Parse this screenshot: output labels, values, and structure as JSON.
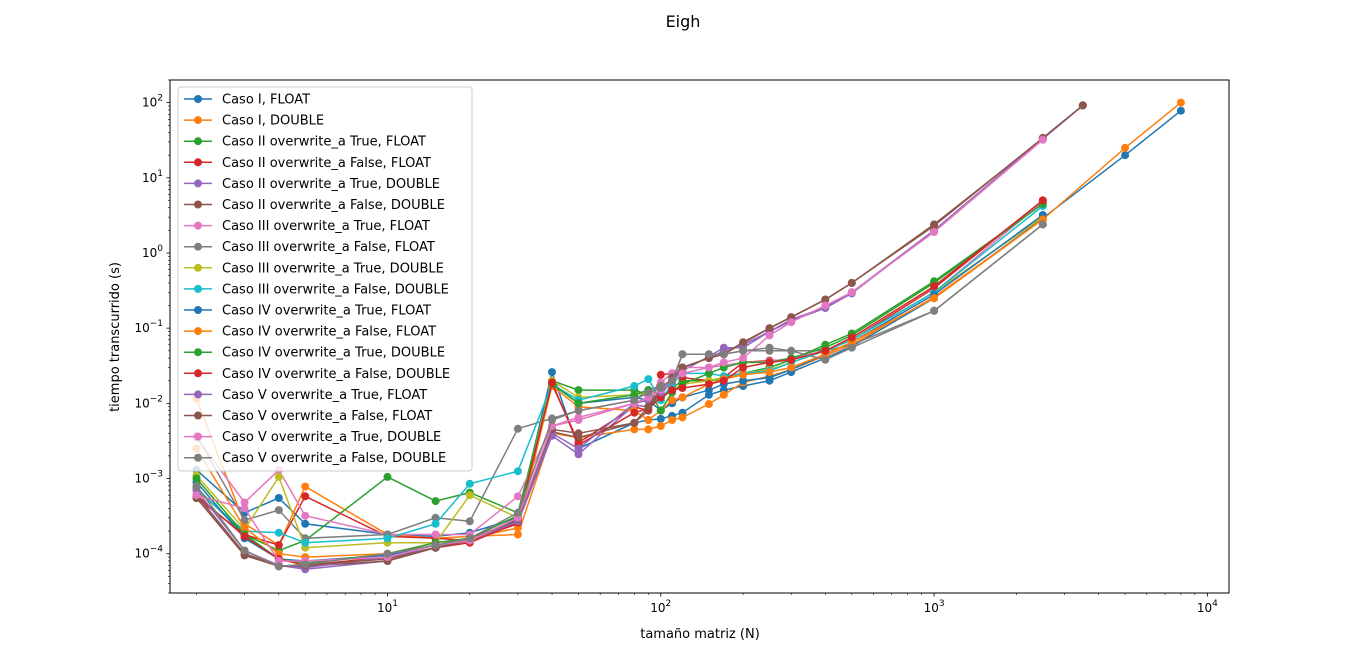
{
  "chart_data": {
    "type": "line",
    "title": "Eigh",
    "xlabel": "tamaño matriz (N)",
    "ylabel": "tiempo transcurrido (s)",
    "xscale": "log",
    "yscale": "log",
    "xlim": [
      1.6,
      12000
    ],
    "ylim": [
      3e-05,
      200
    ],
    "grid": false,
    "legend_position": "upper-left",
    "x_ticks": [
      {
        "value": 10,
        "base": "10",
        "exp": "1"
      },
      {
        "value": 100,
        "base": "10",
        "exp": "2"
      },
      {
        "value": 1000,
        "base": "10",
        "exp": "3"
      },
      {
        "value": 10000,
        "base": "10",
        "exp": "4"
      }
    ],
    "y_ticks": [
      {
        "value": 0.0001,
        "base": "10",
        "exp": "−4"
      },
      {
        "value": 0.001,
        "base": "10",
        "exp": "−3"
      },
      {
        "value": 0.01,
        "base": "10",
        "exp": "−2"
      },
      {
        "value": 0.1,
        "base": "10",
        "exp": "−1"
      },
      {
        "value": 1,
        "base": "10",
        "exp": "0"
      },
      {
        "value": 10,
        "base": "10",
        "exp": "1"
      },
      {
        "value": 100,
        "base": "10",
        "exp": "2"
      }
    ],
    "series": [
      {
        "name": "Caso I, FLOAT",
        "color": "#1f77b4",
        "x": [
          2,
          3,
          4,
          5,
          10,
          15,
          20,
          30,
          40,
          50,
          80,
          90,
          100,
          110,
          120,
          150,
          170,
          200,
          250,
          300,
          400,
          500,
          1000,
          2500,
          5000,
          8000
        ],
        "y": [
          0.0013,
          0.00035,
          0.00055,
          0.00025,
          0.00018,
          0.00017,
          0.00019,
          0.0003,
          0.026,
          0.0025,
          0.0055,
          0.006,
          0.0062,
          0.0068,
          0.0075,
          0.013,
          0.015,
          0.017,
          0.02,
          0.026,
          0.04,
          0.057,
          0.25,
          2.9,
          20,
          78
        ]
      },
      {
        "name": "Caso I, DOUBLE",
        "color": "#ff7f0e",
        "x": [
          2,
          3,
          4,
          5,
          10,
          15,
          20,
          30,
          40,
          50,
          80,
          90,
          100,
          110,
          120,
          150,
          170,
          200,
          250,
          300,
          400,
          500,
          1000,
          2500,
          5000,
          8000
        ],
        "y": [
          0.0115,
          0.00025,
          0.00013,
          0.00078,
          0.00018,
          0.00016,
          0.00017,
          0.00018,
          0.004,
          0.0035,
          0.0045,
          0.0045,
          0.005,
          0.006,
          0.0065,
          0.0098,
          0.013,
          0.019,
          0.023,
          0.028,
          0.043,
          0.06,
          0.26,
          2.8,
          25,
          100
        ]
      },
      {
        "name": "Caso II overwrite_a True, FLOAT",
        "color": "#2ca02c",
        "x": [
          2,
          3,
          4,
          5,
          10,
          15,
          20,
          30,
          40,
          50,
          80,
          90,
          100,
          110,
          120,
          150,
          170,
          200,
          250,
          300,
          400,
          500,
          1000,
          2500
        ],
        "y": [
          0.00075,
          0.00018,
          0.00011,
          0.00015,
          0.00105,
          0.0005,
          0.00065,
          0.00035,
          0.02,
          0.015,
          0.015,
          0.013,
          0.011,
          0.016,
          0.02,
          0.02,
          0.021,
          0.025,
          0.03,
          0.038,
          0.06,
          0.085,
          0.42,
          4.5
        ]
      },
      {
        "name": "Caso II overwrite_a False, FLOAT",
        "color": "#d62728",
        "x": [
          2,
          3,
          4,
          5,
          10,
          15,
          20,
          30,
          40,
          50,
          80,
          90,
          100,
          110,
          120,
          150,
          170,
          200,
          250,
          300,
          400,
          500,
          1000,
          2500
        ],
        "y": [
          0.00055,
          0.00018,
          0.00013,
          0.00058,
          0.00017,
          0.00016,
          0.00015,
          0.00025,
          0.018,
          0.003,
          0.009,
          0.008,
          0.024,
          0.025,
          0.022,
          0.02,
          0.022,
          0.035,
          0.037,
          0.038,
          0.05,
          0.07,
          0.34,
          5.0
        ]
      },
      {
        "name": "Caso II overwrite_a True, DOUBLE",
        "color": "#9467bd",
        "x": [
          2,
          3,
          4,
          5,
          10,
          15,
          20,
          30,
          40,
          50,
          80,
          90,
          100,
          110,
          120,
          150,
          170,
          200,
          250,
          300,
          400,
          500,
          1000,
          2500,
          3500
        ],
        "y": [
          0.0006,
          0.0001,
          7e-05,
          6.2e-05,
          8e-05,
          0.00012,
          0.00015,
          0.00026,
          0.0037,
          0.0021,
          0.0095,
          0.009,
          0.013,
          0.02,
          0.027,
          0.042,
          0.055,
          0.055,
          0.09,
          0.125,
          0.185,
          0.29,
          2.0,
          33,
          92
        ]
      },
      {
        "name": "Caso II overwrite_a False, DOUBLE",
        "color": "#8c564b",
        "x": [
          2,
          3,
          4,
          5,
          10,
          15,
          20,
          30,
          40,
          50,
          80,
          90,
          100,
          110,
          120,
          150,
          170,
          200,
          250,
          300,
          400,
          500,
          1000,
          2500,
          3500
        ],
        "y": [
          0.00055,
          9.5e-05,
          6.8e-05,
          6.8e-05,
          8e-05,
          0.00012,
          0.00016,
          0.00028,
          0.0042,
          0.0035,
          0.0055,
          0.008,
          0.015,
          0.02,
          0.03,
          0.04,
          0.045,
          0.063,
          0.1,
          0.14,
          0.24,
          0.4,
          2.4,
          33,
          92
        ]
      },
      {
        "name": "Caso III overwrite_a True, FLOAT",
        "color": "#e377c2",
        "x": [
          2,
          3,
          4,
          5,
          10,
          15,
          20,
          30,
          40,
          50,
          80,
          90,
          100,
          110,
          120,
          150,
          170,
          200,
          250,
          300,
          400,
          500,
          1000,
          2500
        ],
        "y": [
          0.0035,
          0.00048,
          0.0013,
          0.00032,
          0.00018,
          0.00018,
          0.00018,
          0.00058,
          0.005,
          0.006,
          0.01,
          0.012,
          0.019,
          0.025,
          0.03,
          0.03,
          0.032,
          0.035,
          0.036,
          0.04,
          0.05,
          0.07,
          0.3,
          4.8
        ]
      },
      {
        "name": "Caso III overwrite_a False, FLOAT",
        "color": "#7f7f7f",
        "x": [
          2,
          3,
          4,
          5,
          10,
          15,
          20,
          30,
          40,
          50,
          80,
          90,
          100,
          110,
          120,
          150,
          170,
          200,
          250,
          300,
          400,
          500,
          1000,
          2500
        ],
        "y": [
          0.0037,
          0.00028,
          0.00038,
          0.00016,
          0.00018,
          0.0003,
          0.00027,
          0.0046,
          0.0063,
          0.008,
          0.011,
          0.015,
          0.017,
          0.02,
          0.045,
          0.045,
          0.045,
          0.05,
          0.05,
          0.05,
          0.05,
          0.06,
          0.17,
          2.4
        ]
      },
      {
        "name": "Caso III overwrite_a True, DOUBLE",
        "color": "#bcbd22",
        "x": [
          2,
          3,
          4,
          5,
          10,
          15,
          20,
          30,
          40,
          50,
          80,
          90,
          100,
          110,
          120,
          150,
          170,
          200,
          250,
          300,
          400,
          500,
          1000,
          2500
        ],
        "y": [
          0.0011,
          0.00021,
          0.00105,
          0.00012,
          0.00014,
          0.00014,
          0.0006,
          0.0003,
          0.02,
          0.012,
          0.013,
          0.014,
          0.012,
          0.015,
          0.018,
          0.02,
          0.022,
          0.025,
          0.028,
          0.035,
          0.05,
          0.07,
          0.3,
          3.0
        ]
      },
      {
        "name": "Caso III overwrite_a False, DOUBLE",
        "color": "#17becf",
        "x": [
          2,
          3,
          4,
          5,
          10,
          15,
          20,
          30,
          40,
          50,
          80,
          90,
          100,
          110,
          120,
          150,
          170,
          200,
          250,
          300,
          400,
          500,
          1000,
          2500
        ],
        "y": [
          0.0007,
          0.0002,
          0.00019,
          0.00014,
          0.00016,
          0.00025,
          0.00085,
          0.00125,
          0.018,
          0.011,
          0.017,
          0.021,
          0.011,
          0.018,
          0.025,
          0.025,
          0.023,
          0.025,
          0.027,
          0.035,
          0.05,
          0.07,
          0.3,
          4.2
        ]
      },
      {
        "name": "Caso IV overwrite_a True, FLOAT",
        "color": "#1f77b4",
        "x": [
          2,
          3,
          4,
          5,
          10,
          15,
          20,
          30,
          40,
          50,
          80,
          90,
          100,
          110,
          120,
          150,
          170,
          200,
          250,
          300,
          400,
          500,
          1000,
          2500
        ],
        "y": [
          0.0009,
          0.00016,
          8.5e-05,
          8e-05,
          9.5e-05,
          0.00013,
          0.00015,
          0.00028,
          0.018,
          0.01,
          0.012,
          0.011,
          0.008,
          0.01,
          0.012,
          0.015,
          0.018,
          0.02,
          0.022,
          0.028,
          0.045,
          0.065,
          0.28,
          3.2
        ]
      },
      {
        "name": "Caso IV overwrite_a False, FLOAT",
        "color": "#ff7f0e",
        "x": [
          2,
          3,
          4,
          5,
          10,
          15,
          20,
          30,
          40,
          50,
          80,
          90,
          100,
          110,
          120,
          150,
          170,
          200,
          250,
          300,
          400,
          500,
          1000,
          2500
        ],
        "y": [
          0.0025,
          0.00022,
          0.0001,
          9e-05,
          0.0001,
          0.00014,
          0.00016,
          0.00022,
          0.017,
          0.009,
          0.008,
          0.006,
          0.008,
          0.011,
          0.012,
          0.018,
          0.021,
          0.024,
          0.026,
          0.03,
          0.045,
          0.065,
          0.25,
          2.8
        ]
      },
      {
        "name": "Caso IV overwrite_a True, DOUBLE",
        "color": "#2ca02c",
        "x": [
          2,
          3,
          4,
          5,
          10,
          15,
          20,
          30,
          40,
          50,
          80,
          90,
          100,
          110,
          120,
          150,
          170,
          200,
          250,
          300,
          400,
          500,
          1000,
          2500
        ],
        "y": [
          0.001,
          0.00018,
          8.5e-05,
          7.5e-05,
          0.0001,
          0.00014,
          0.00016,
          0.00032,
          0.018,
          0.01,
          0.013,
          0.015,
          0.008,
          0.014,
          0.018,
          0.025,
          0.03,
          0.035,
          0.035,
          0.04,
          0.055,
          0.08,
          0.4,
          4.5
        ]
      },
      {
        "name": "Caso IV overwrite_a False, DOUBLE",
        "color": "#d62728",
        "x": [
          2,
          3,
          4,
          5,
          10,
          15,
          20,
          30,
          40,
          50,
          80,
          90,
          100,
          110,
          120,
          150,
          170,
          200,
          250,
          300,
          400,
          500,
          1000,
          2500
        ],
        "y": [
          0.0006,
          0.00017,
          8.5e-05,
          7e-05,
          9e-05,
          0.00012,
          0.00014,
          0.00026,
          0.019,
          0.0028,
          0.0075,
          0.0085,
          0.012,
          0.015,
          0.016,
          0.018,
          0.02,
          0.03,
          0.035,
          0.038,
          0.05,
          0.075,
          0.36,
          5.0
        ]
      },
      {
        "name": "Caso V overwrite_a True, FLOAT",
        "color": "#9467bd",
        "x": [
          2,
          3,
          4,
          5,
          10,
          15,
          20,
          30,
          40,
          50,
          80,
          90,
          100,
          110,
          120,
          150,
          170,
          200,
          250,
          300,
          400,
          500,
          1000,
          2500,
          3500
        ],
        "y": [
          0.0007,
          0.00011,
          7e-05,
          6.5e-05,
          9e-05,
          0.00012,
          0.00015,
          0.00027,
          0.004,
          0.0025,
          0.01,
          0.011,
          0.014,
          0.02,
          0.03,
          0.04,
          0.05,
          0.06,
          0.09,
          0.13,
          0.19,
          0.3,
          2.0,
          33,
          92
        ]
      },
      {
        "name": "Caso V overwrite_a False, FLOAT",
        "color": "#8c564b",
        "x": [
          2,
          3,
          4,
          5,
          10,
          15,
          20,
          30,
          40,
          50,
          80,
          90,
          100,
          110,
          120,
          150,
          170,
          200,
          250,
          300,
          400,
          500,
          1000,
          2500,
          3500
        ],
        "y": [
          0.0006,
          0.0001,
          6.8e-05,
          7e-05,
          8.5e-05,
          0.00012,
          0.00015,
          0.00029,
          0.0045,
          0.004,
          0.0055,
          0.009,
          0.015,
          0.022,
          0.03,
          0.04,
          0.045,
          0.065,
          0.1,
          0.14,
          0.24,
          0.4,
          2.3,
          34,
          92
        ]
      },
      {
        "name": "Caso V overwrite_a True, DOUBLE",
        "color": "#e377c2",
        "x": [
          2,
          3,
          4,
          5,
          10,
          15,
          20,
          30,
          40,
          50,
          80,
          90,
          100,
          110,
          120,
          150,
          170,
          200,
          250,
          300,
          400,
          500,
          1000,
          2500
        ],
        "y": [
          0.0006,
          0.0004,
          8e-05,
          8e-05,
          9e-05,
          0.00013,
          0.00015,
          0.0003,
          0.005,
          0.0065,
          0.01,
          0.012,
          0.015,
          0.02,
          0.025,
          0.03,
          0.035,
          0.04,
          0.08,
          0.12,
          0.2,
          0.3,
          1.9,
          32
        ]
      },
      {
        "name": "Caso V overwrite_a False, DOUBLE",
        "color": "#7f7f7f",
        "x": [
          2,
          3,
          4,
          5,
          10,
          15,
          20,
          30,
          40,
          50,
          80,
          90,
          100,
          110,
          120,
          150,
          170,
          200,
          250,
          300,
          400,
          500,
          1000,
          2500
        ],
        "y": [
          0.0008,
          0.00011,
          6.8e-05,
          7.2e-05,
          0.0001,
          0.00013,
          0.00016,
          0.00035,
          0.006,
          0.008,
          0.011,
          0.014,
          0.016,
          0.02,
          0.045,
          0.045,
          0.045,
          0.05,
          0.055,
          0.05,
          0.038,
          0.055,
          0.17,
          2.4
        ]
      }
    ]
  }
}
